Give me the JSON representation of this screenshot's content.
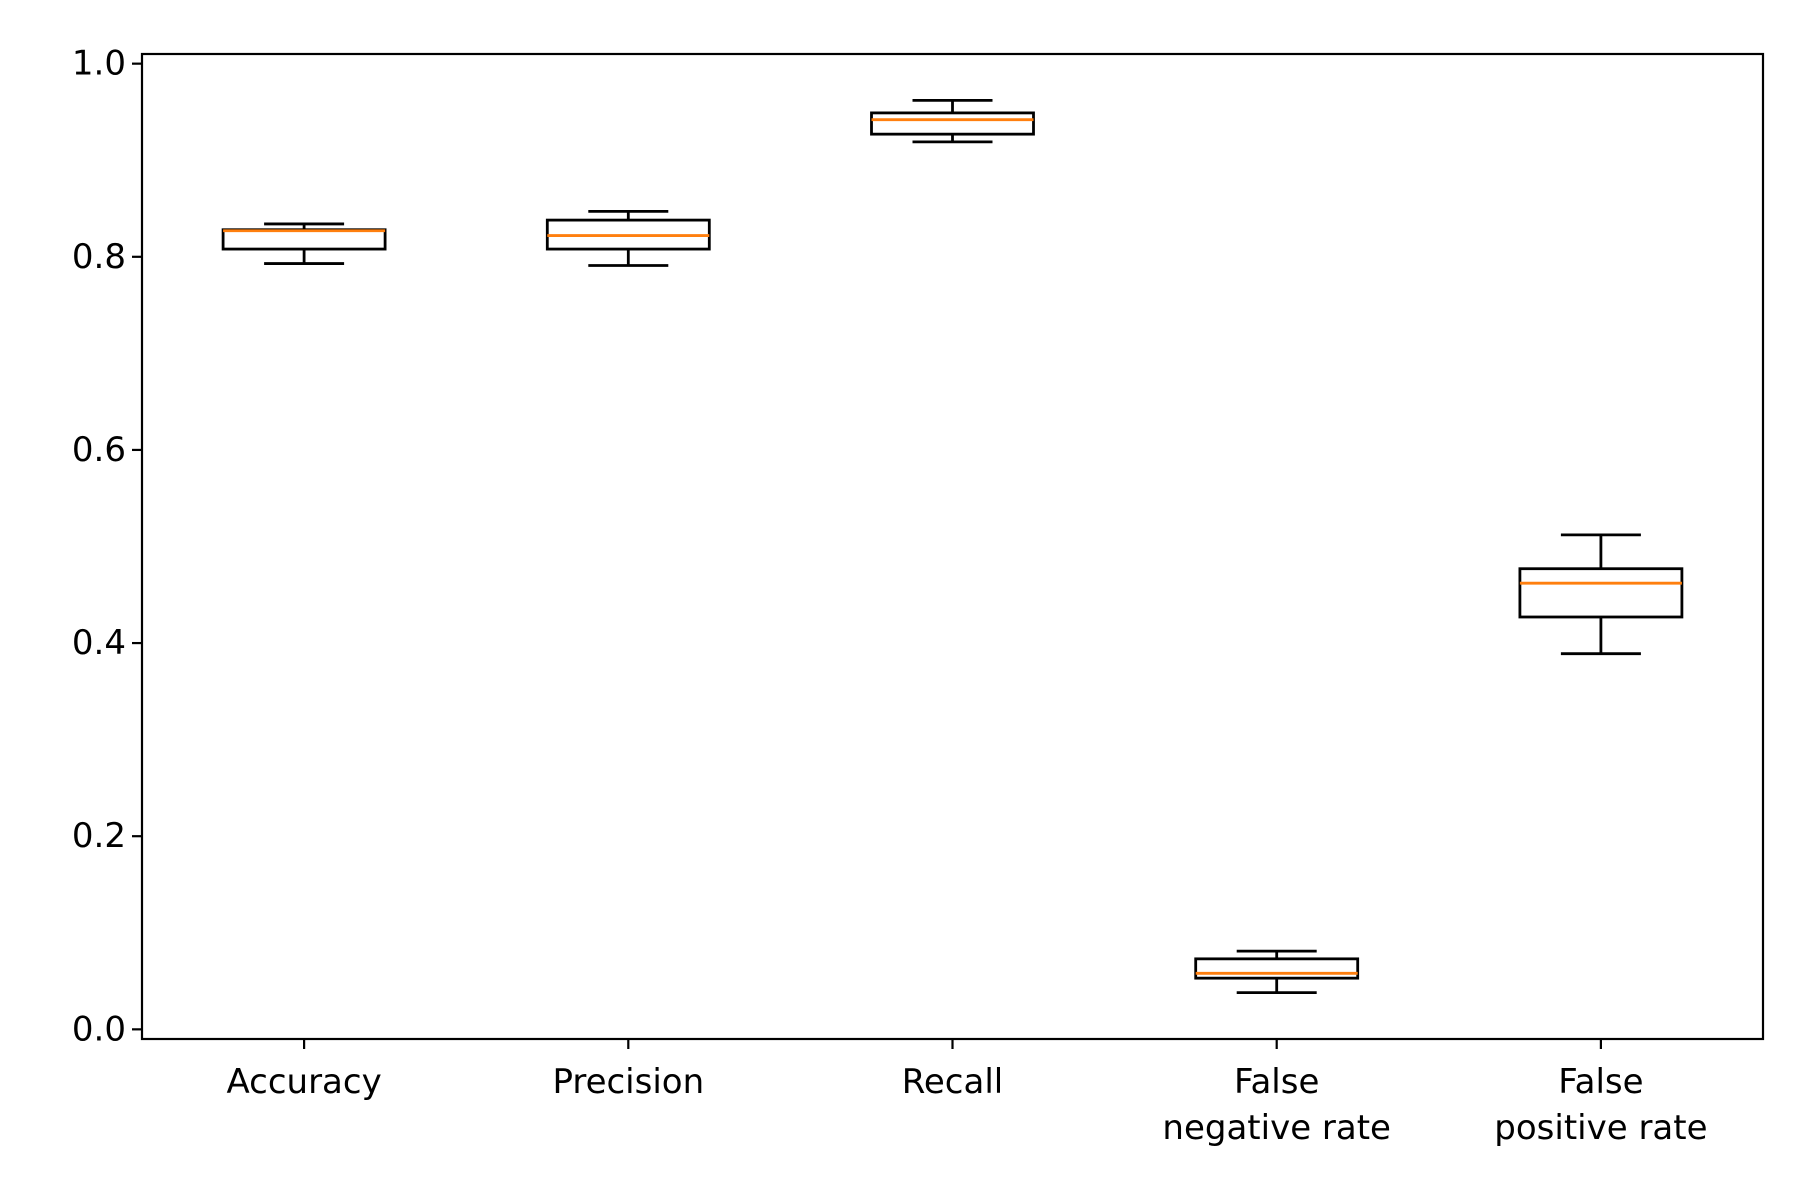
{
  "chart_data": {
    "type": "boxplot",
    "title": "",
    "xlabel": "",
    "ylabel": "",
    "ylim": [
      -0.01,
      1.01
    ],
    "yticks": [
      0.0,
      0.2,
      0.4,
      0.6,
      0.8,
      1.0
    ],
    "ytick_labels": [
      "0.0",
      "0.2",
      "0.4",
      "0.6",
      "0.8",
      "1.0"
    ],
    "grid": false,
    "legend": "none",
    "colors": {
      "box": "#000000",
      "median": "#ff7f0e"
    },
    "categories": [
      [
        "Accuracy"
      ],
      [
        "Precision"
      ],
      [
        "Recall"
      ],
      [
        "False",
        "negative rate"
      ],
      [
        "False",
        "positive rate"
      ]
    ],
    "boxes": [
      {
        "whisker_low": 0.793,
        "q1": 0.808,
        "median": 0.827,
        "q3": 0.828,
        "whisker_high": 0.834
      },
      {
        "whisker_low": 0.791,
        "q1": 0.808,
        "median": 0.822,
        "q3": 0.838,
        "whisker_high": 0.847
      },
      {
        "whisker_low": 0.919,
        "q1": 0.927,
        "median": 0.942,
        "q3": 0.949,
        "whisker_high": 0.962
      },
      {
        "whisker_low": 0.038,
        "q1": 0.053,
        "median": 0.058,
        "q3": 0.073,
        "whisker_high": 0.081
      },
      {
        "whisker_low": 0.389,
        "q1": 0.427,
        "median": 0.462,
        "q3": 0.477,
        "whisker_high": 0.512
      }
    ]
  }
}
